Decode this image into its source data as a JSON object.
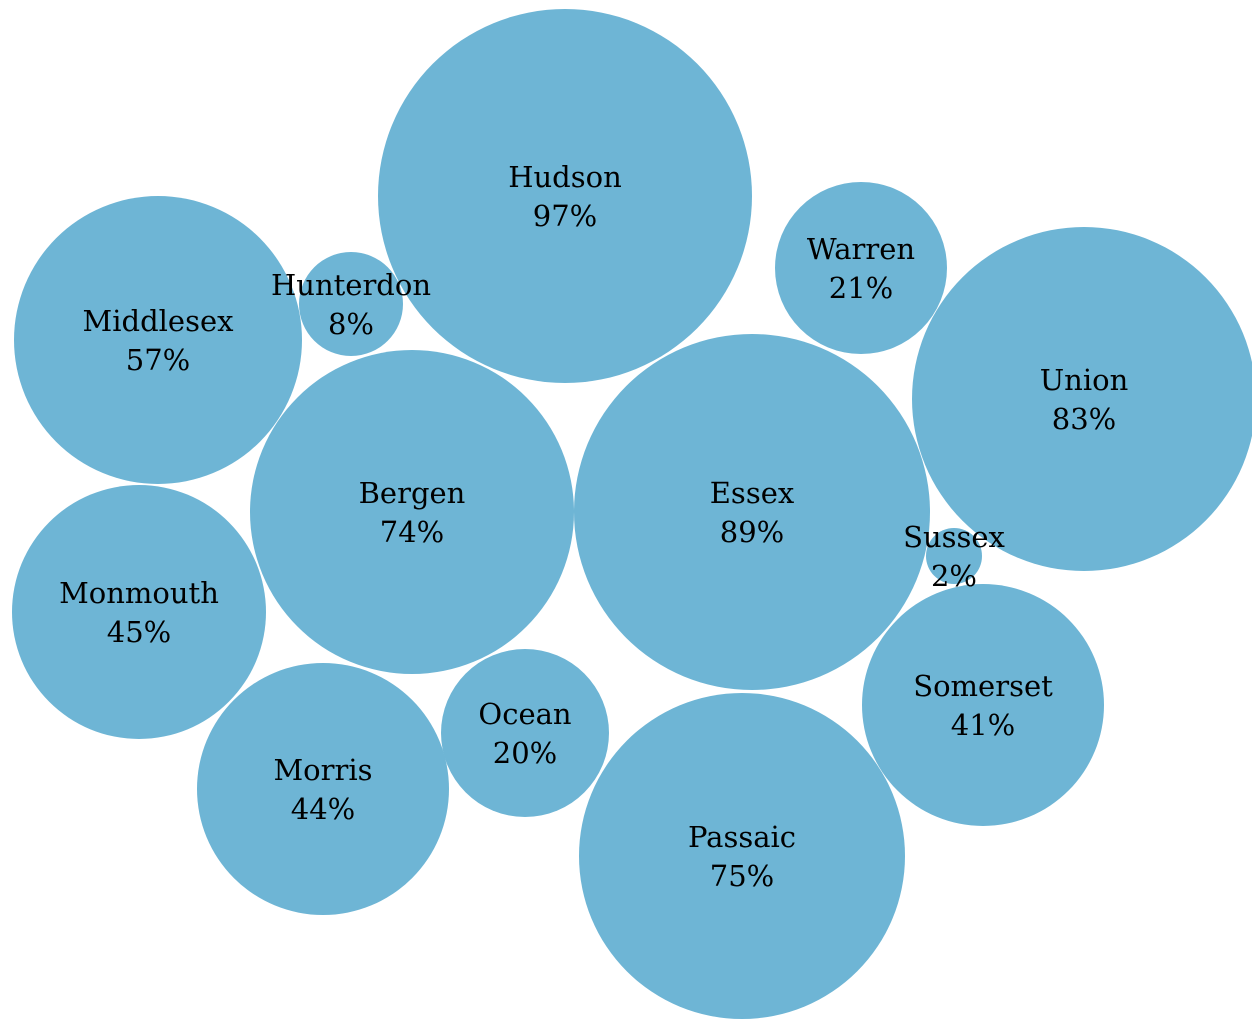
{
  "chart_data": {
    "type": "bubble",
    "value_unit": "%",
    "bubble_color": "#6eb5d5",
    "label_color": "#000000",
    "background": "#ffffff",
    "series": [
      {
        "name": "Hudson",
        "value": 97,
        "label": "97%"
      },
      {
        "name": "Essex",
        "value": 89,
        "label": "89%"
      },
      {
        "name": "Union",
        "value": 83,
        "label": "83%"
      },
      {
        "name": "Passaic",
        "value": 75,
        "label": "75%"
      },
      {
        "name": "Bergen",
        "value": 74,
        "label": "74%"
      },
      {
        "name": "Middlesex",
        "value": 57,
        "label": "57%"
      },
      {
        "name": "Monmouth",
        "value": 45,
        "label": "45%"
      },
      {
        "name": "Morris",
        "value": 44,
        "label": "44%"
      },
      {
        "name": "Somerset",
        "value": 41,
        "label": "41%"
      },
      {
        "name": "Warren",
        "value": 21,
        "label": "21%"
      },
      {
        "name": "Ocean",
        "value": 20,
        "label": "20%"
      },
      {
        "name": "Hunterdon",
        "value": 8,
        "label": "8%"
      },
      {
        "name": "Sussex",
        "value": 2,
        "label": "2%"
      }
    ]
  }
}
